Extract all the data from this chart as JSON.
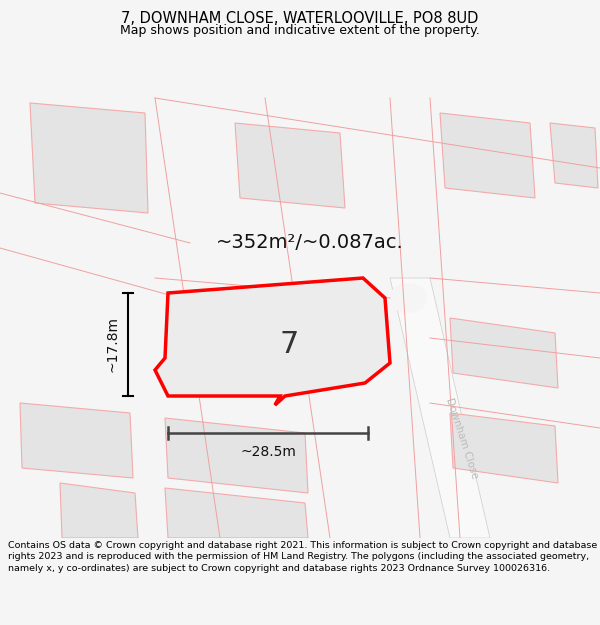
{
  "title": "7, DOWNHAM CLOSE, WATERLOOVILLE, PO8 8UD",
  "subtitle": "Map shows position and indicative extent of the property.",
  "area_label": "~352m²/~0.087ac.",
  "number_label": "7",
  "width_label": "~28.5m",
  "height_label": "~17.8m",
  "footer": "Contains OS data © Crown copyright and database right 2021. This information is subject to Crown copyright and database rights 2023 and is reproduced with the permission of HM Land Registry. The polygons (including the associated geometry, namely x, y co-ordinates) are subject to Crown copyright and database rights 2023 Ordnance Survey 100026316.",
  "bg_color": "#f5f5f5",
  "map_bg": "#ffffff",
  "plot_fill": "#ececec",
  "plot_border": "#ff0000",
  "neighbor_fill": "#e4e4e4",
  "neighbor_border": "#f4aaaa",
  "road_fill": "#f0f0f0",
  "street_label": "Downham Close",
  "figsize": [
    6.0,
    6.25
  ],
  "dpi": 100,
  "title_fontsize": 10.5,
  "subtitle_fontsize": 9,
  "footer_fontsize": 6.8
}
